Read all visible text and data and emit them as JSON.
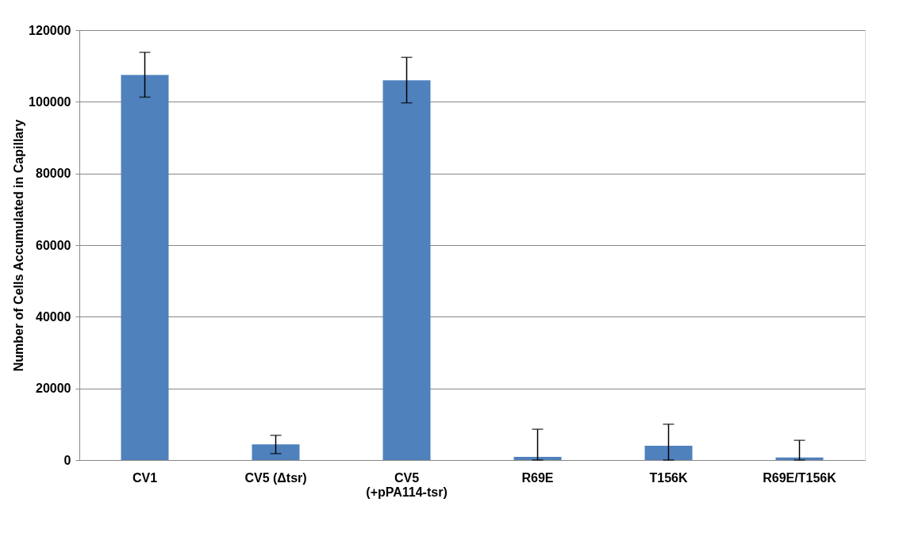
{
  "chart_data": {
    "type": "bar",
    "ylabel": "Number of Cells Accumulated in Capillary",
    "categories": [
      "CV1",
      "CV5 (Δtsr)",
      "CV5\n(+pPA114-tsr)",
      "R69E",
      "T156K",
      "R69E/T156K"
    ],
    "values": [
      107500,
      4400,
      106000,
      900,
      4000,
      700
    ],
    "errors": [
      [
        101300,
        113800
      ],
      [
        1800,
        6900
      ],
      [
        99700,
        112400
      ],
      [
        0,
        8600
      ],
      [
        0,
        10000
      ],
      [
        0,
        5500
      ]
    ],
    "color": "#4f81bd",
    "ylim": [
      0,
      120000
    ],
    "yticks": [
      0,
      20000,
      40000,
      60000,
      80000,
      100000,
      120000
    ],
    "grid": "y"
  }
}
